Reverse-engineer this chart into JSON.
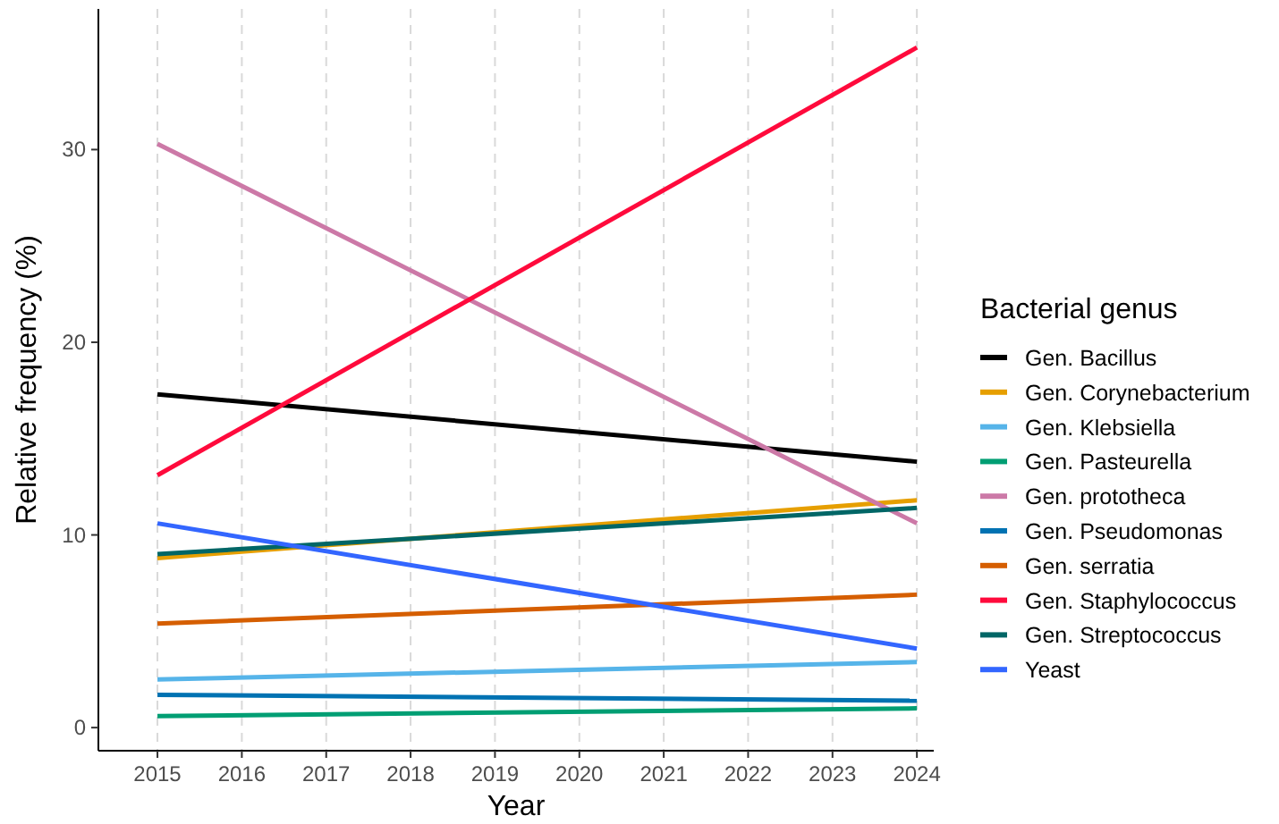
{
  "chart_data": {
    "type": "line",
    "xlabel": "Year",
    "ylabel": "Relative frequency (%)",
    "legend_title": "Bacterial genus",
    "legend": "right",
    "grid": "x",
    "line_style": "solid",
    "marker": "none",
    "x": [
      2015,
      2024
    ],
    "xlim": [
      2014.3,
      2024.2
    ],
    "xticks": [
      2015,
      2016,
      2017,
      2018,
      2019,
      2020,
      2021,
      2022,
      2023,
      2024
    ],
    "ylim": [
      -1.2,
      37.3
    ],
    "yticks": [
      0,
      10,
      20,
      30
    ],
    "series": [
      {
        "name": "Gen. Bacillus",
        "color": "#000000",
        "values": [
          17.3,
          13.8
        ]
      },
      {
        "name": "Gen. Corynebacterium",
        "color": "#e69f00",
        "values": [
          8.8,
          11.8
        ]
      },
      {
        "name": "Gen. Klebsiella",
        "color": "#56b4e9",
        "values": [
          2.5,
          3.4
        ]
      },
      {
        "name": "Gen. Pasteurella",
        "color": "#009e73",
        "values": [
          0.6,
          1.0
        ]
      },
      {
        "name": "Gen. prototheca",
        "color": "#cc79a7",
        "values": [
          30.3,
          10.6
        ]
      },
      {
        "name": "Gen. Pseudomonas",
        "color": "#0072b2",
        "values": [
          1.7,
          1.4
        ]
      },
      {
        "name": "Gen. serratia",
        "color": "#d55e00",
        "values": [
          5.4,
          6.9
        ]
      },
      {
        "name": "Gen. Staphylococcus",
        "color": "#ff0a3c",
        "values": [
          13.1,
          35.3
        ]
      },
      {
        "name": "Gen. Streptococcus",
        "color": "#006666",
        "values": [
          9.0,
          11.4
        ]
      },
      {
        "name": "Yeast",
        "color": "#3366ff",
        "values": [
          10.6,
          4.1
        ]
      }
    ]
  }
}
